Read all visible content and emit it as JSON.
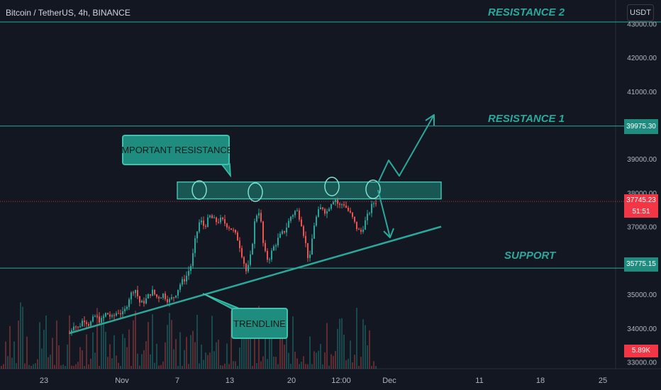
{
  "header": {
    "symbol": "Bitcoin / TetherUS, 4h, BINANCE",
    "currency_button": "USDT"
  },
  "annotations": {
    "resistance2": "RESISTANCE 2",
    "resistance1": "RESISTANCE 1",
    "support": "SUPPORT",
    "important_resistance": "IMPORTANT RESISTANCE",
    "trendline": "TRENDLINE"
  },
  "price_tags": {
    "resistance1": "39975.30",
    "current_price": "37745.23",
    "countdown": "51:51",
    "support": "35775.15",
    "volume": "5.89K"
  },
  "colors": {
    "background": "#131722",
    "up_candle": "#26a69a",
    "down_candle": "#ef5350",
    "annotation": "#2ca89a",
    "current_price": "#f23645"
  },
  "chart_data": {
    "type": "candlestick",
    "symbol": "BTCUSDT",
    "timeframe": "4h",
    "y_ticks": [
      43000,
      42000,
      41000,
      39000,
      38000,
      37000,
      36000,
      35000,
      34000,
      33000
    ],
    "y_tick_labels": [
      "43000.00",
      "42000.00",
      "41000.00",
      "39000.00",
      "38000.00",
      "37000.00",
      "36000.00",
      "35000.00",
      "34000.00",
      "33000.00"
    ],
    "ylim": [
      32800,
      43700
    ],
    "x_ticks": [
      "23",
      "Nov",
      "7",
      "13",
      "20",
      "12:00",
      "Dec",
      "11",
      "18",
      "25"
    ],
    "price_path": [
      {
        "x": 98,
        "p": 33850
      },
      {
        "x": 104,
        "p": 34120
      },
      {
        "x": 110,
        "p": 34000
      },
      {
        "x": 118,
        "p": 34280
      },
      {
        "x": 126,
        "p": 34100
      },
      {
        "x": 134,
        "p": 34350
      },
      {
        "x": 142,
        "p": 34200
      },
      {
        "x": 150,
        "p": 34450
      },
      {
        "x": 158,
        "p": 34300
      },
      {
        "x": 166,
        "p": 34500
      },
      {
        "x": 174,
        "p": 34400
      },
      {
        "x": 182,
        "p": 34900
      },
      {
        "x": 190,
        "p": 35200
      },
      {
        "x": 198,
        "p": 34700
      },
      {
        "x": 206,
        "p": 34850
      },
      {
        "x": 214,
        "p": 35100
      },
      {
        "x": 222,
        "p": 34900
      },
      {
        "x": 230,
        "p": 35000
      },
      {
        "x": 238,
        "p": 34800
      },
      {
        "x": 246,
        "p": 34950
      },
      {
        "x": 254,
        "p": 35300
      },
      {
        "x": 262,
        "p": 35500
      },
      {
        "x": 270,
        "p": 35900
      },
      {
        "x": 276,
        "p": 36700
      },
      {
        "x": 282,
        "p": 37200
      },
      {
        "x": 288,
        "p": 37000
      },
      {
        "x": 296,
        "p": 37300
      },
      {
        "x": 304,
        "p": 37150
      },
      {
        "x": 312,
        "p": 37200
      },
      {
        "x": 320,
        "p": 37050
      },
      {
        "x": 328,
        "p": 36900
      },
      {
        "x": 336,
        "p": 36600
      },
      {
        "x": 342,
        "p": 36100
      },
      {
        "x": 348,
        "p": 35600
      },
      {
        "x": 354,
        "p": 36200
      },
      {
        "x": 360,
        "p": 37300
      },
      {
        "x": 366,
        "p": 37500
      },
      {
        "x": 372,
        "p": 36300
      },
      {
        "x": 378,
        "p": 36000
      },
      {
        "x": 386,
        "p": 36400
      },
      {
        "x": 394,
        "p": 36700
      },
      {
        "x": 402,
        "p": 36900
      },
      {
        "x": 410,
        "p": 37300
      },
      {
        "x": 418,
        "p": 37500
      },
      {
        "x": 424,
        "p": 37200
      },
      {
        "x": 430,
        "p": 36600
      },
      {
        "x": 436,
        "p": 35900
      },
      {
        "x": 442,
        "p": 37000
      },
      {
        "x": 448,
        "p": 37400
      },
      {
        "x": 454,
        "p": 37600
      },
      {
        "x": 460,
        "p": 37400
      },
      {
        "x": 466,
        "p": 37700
      },
      {
        "x": 472,
        "p": 37850
      },
      {
        "x": 478,
        "p": 37600
      },
      {
        "x": 484,
        "p": 37700
      },
      {
        "x": 490,
        "p": 37500
      },
      {
        "x": 496,
        "p": 37300
      },
      {
        "x": 502,
        "p": 37000
      },
      {
        "x": 508,
        "p": 36800
      },
      {
        "x": 514,
        "p": 37100
      },
      {
        "x": 520,
        "p": 37400
      },
      {
        "x": 526,
        "p": 37700
      },
      {
        "x": 532,
        "p": 37745
      }
    ],
    "levels": {
      "resistance2": 43800,
      "resistance1": 39975.3,
      "important_resistance": [
        37820,
        38320
      ],
      "support": 35775.15,
      "current": 37745.23
    },
    "trendline": [
      {
        "x": 98,
        "p": 33850
      },
      {
        "x": 622,
        "p": 37000
      }
    ],
    "current_volume": "5.89K"
  }
}
